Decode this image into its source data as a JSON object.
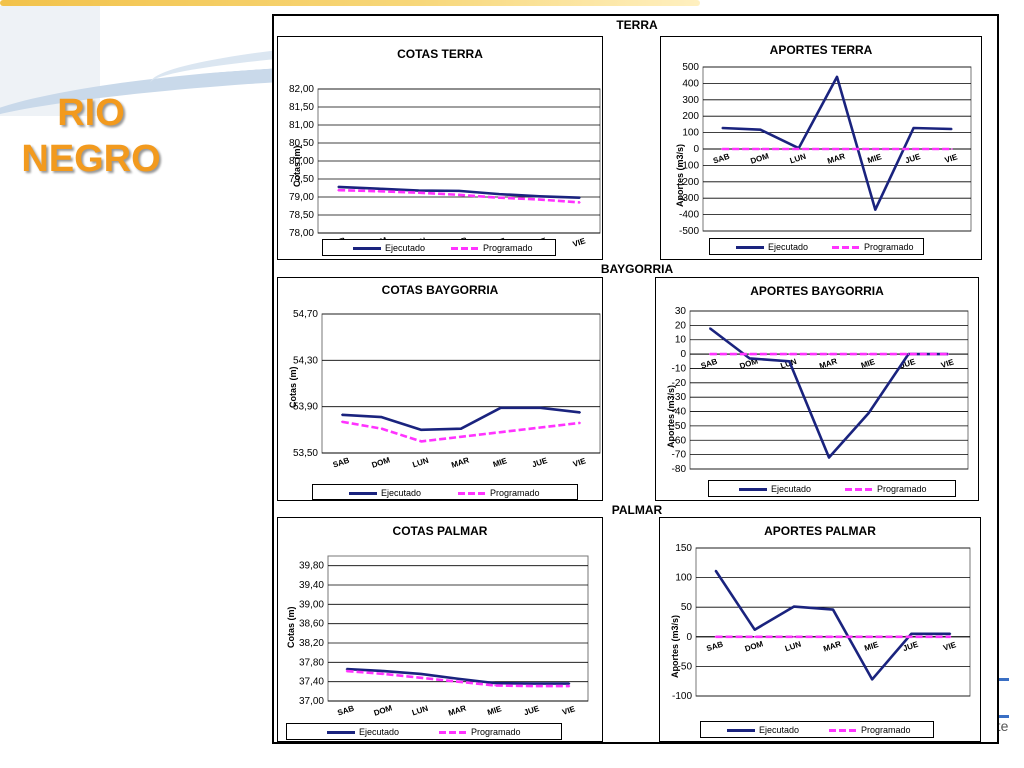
{
  "slide": {
    "title_line1": "RIO",
    "title_line2": "NEGRO",
    "logo_text": "s ute"
  },
  "sections": {
    "terra": "TERRA",
    "baygorria": "BAYGORRIA",
    "palmar": "PALMAR"
  },
  "legend": {
    "executed": "Ejecutado",
    "programmed": "Programado"
  },
  "colors": {
    "executed": "#1a237e",
    "programmed": "#ff33ff",
    "title": "#f29a1e"
  },
  "chart_data": [
    {
      "id": "cotas-terra",
      "type": "line",
      "title": "COTAS TERRA",
      "ylabel": "Cotas (m)",
      "categories": [
        "SAB",
        "DOM",
        "LUN",
        "MAR",
        "MIE",
        "JUE",
        "VIE"
      ],
      "ylim": [
        78.0,
        82.0
      ],
      "yticks": [
        "78,00",
        "78,50",
        "79,00",
        "79,50",
        "80,00",
        "80,50",
        "81,00",
        "81,50",
        "82,00"
      ],
      "series": [
        {
          "name": "Ejecutado",
          "values": [
            79.28,
            79.23,
            79.18,
            79.17,
            79.08,
            79.02,
            78.98
          ]
        },
        {
          "name": "Programado",
          "values": [
            79.19,
            79.16,
            79.12,
            79.06,
            78.98,
            78.93,
            78.85
          ]
        }
      ]
    },
    {
      "id": "aportes-terra",
      "type": "line",
      "title": "APORTES TERRA",
      "ylabel": "Aportes (m3/s)",
      "categories": [
        "SAB",
        "DOM",
        "LUN",
        "MAR",
        "MIE",
        "JUE",
        "VIE"
      ],
      "ylim": [
        -500,
        500
      ],
      "yticks": [
        "-500",
        "-400",
        "-300",
        "-200",
        "-100",
        "0",
        "100",
        "200",
        "300",
        "400",
        "500"
      ],
      "series": [
        {
          "name": "Ejecutado",
          "values": [
            128,
            118,
            5,
            440,
            -370,
            128,
            122
          ]
        },
        {
          "name": "Programado",
          "values": [
            0,
            0,
            0,
            0,
            0,
            0,
            0
          ]
        }
      ]
    },
    {
      "id": "cotas-baygorria",
      "type": "line",
      "title": "COTAS BAYGORRIA",
      "ylabel": "Cotas (m)",
      "categories": [
        "SAB",
        "DOM",
        "LUN",
        "MAR",
        "MIE",
        "JUE",
        "VIE"
      ],
      "ylim": [
        53.5,
        54.7
      ],
      "yticks": [
        "53,50",
        "53,90",
        "54,30",
        "54,70"
      ],
      "series": [
        {
          "name": "Ejecutado",
          "values": [
            53.83,
            53.81,
            53.7,
            53.71,
            53.89,
            53.89,
            53.85
          ]
        },
        {
          "name": "Programado",
          "values": [
            53.77,
            53.71,
            53.6,
            53.64,
            53.68,
            53.72,
            53.76
          ]
        }
      ]
    },
    {
      "id": "aportes-baygorria",
      "type": "line",
      "title": "APORTES BAYGORRIA",
      "ylabel": "Aportes (m3/s)",
      "categories": [
        "SAB",
        "DOM",
        "LUN",
        "MAR",
        "MIE",
        "JUE",
        "VIE"
      ],
      "ylim": [
        -80,
        30
      ],
      "yticks": [
        "-80",
        "-70",
        "-60",
        "-50",
        "-40",
        "-30",
        "-20",
        "-10",
        "0",
        "10",
        "20",
        "30"
      ],
      "series": [
        {
          "name": "Ejecutado",
          "values": [
            18,
            -3,
            -5,
            -72,
            -41,
            0,
            0
          ]
        },
        {
          "name": "Programado",
          "values": [
            0,
            0,
            0,
            0,
            0,
            0,
            0
          ]
        }
      ]
    },
    {
      "id": "cotas-palmar",
      "type": "line",
      "title": "COTAS PALMAR",
      "ylabel": "Cotas (m)",
      "categories": [
        "SAB",
        "DOM",
        "LUN",
        "MAR",
        "MIE",
        "JUE",
        "VIE"
      ],
      "ylim": [
        37.0,
        40.0
      ],
      "yticks": [
        "37,00",
        "37,40",
        "37,80",
        "38,20",
        "38,60",
        "39,00",
        "39,40",
        "39,80"
      ],
      "series": [
        {
          "name": "Ejecutado",
          "values": [
            37.66,
            37.62,
            37.56,
            37.46,
            37.37,
            37.36,
            37.36
          ]
        },
        {
          "name": "Programado",
          "values": [
            37.62,
            37.56,
            37.48,
            37.4,
            37.32,
            37.31,
            37.31
          ]
        }
      ]
    },
    {
      "id": "aportes-palmar",
      "type": "line",
      "title": "APORTES PALMAR",
      "ylabel": "Aportes (m3/s)",
      "categories": [
        "SAB",
        "DOM",
        "LUN",
        "MAR",
        "MIE",
        "JUE",
        "VIE"
      ],
      "ylim": [
        -100,
        150
      ],
      "yticks": [
        "-100",
        "-50",
        "0",
        "50",
        "100",
        "150"
      ],
      "series": [
        {
          "name": "Ejecutado",
          "values": [
            112,
            12,
            51,
            46,
            -72,
            5,
            5
          ]
        },
        {
          "name": "Programado",
          "values": [
            0,
            0,
            0,
            0,
            0,
            0,
            0
          ]
        }
      ]
    }
  ]
}
